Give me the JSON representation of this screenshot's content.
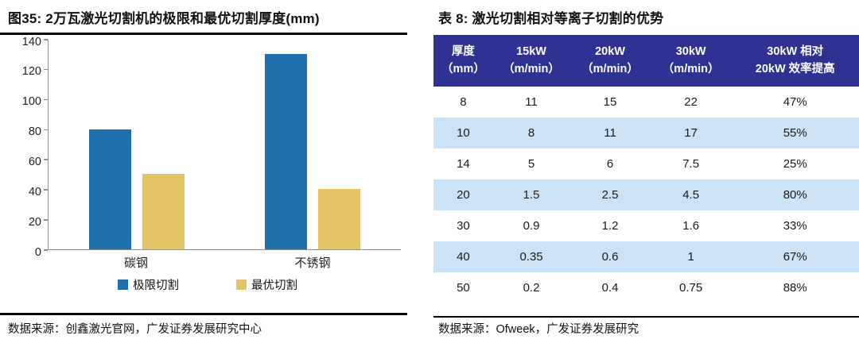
{
  "chart": {
    "title": "图35:  2万瓦激光切割机的极限和最优切割厚度(mm)",
    "source": "数据来源：创鑫激光官网，广发证券发展研究中心"
  },
  "chart_data": {
    "type": "bar",
    "categories": [
      "碳钢",
      "不锈钢"
    ],
    "series": [
      {
        "name": "极限切割",
        "color": "#2070AC",
        "values": [
          80,
          130
        ]
      },
      {
        "name": "最优切割",
        "color": "#E2C464",
        "values": [
          50,
          40
        ]
      }
    ],
    "title": "2万瓦激光切割机的极限和最优切割厚度(mm)",
    "xlabel": "",
    "ylabel": "",
    "ylim": [
      0,
      140
    ],
    "ytick_step": 20,
    "grid": false,
    "legend_position": "bottom",
    "axis_color": "#8f8f8f"
  },
  "table": {
    "title": "表 8:  激光切割相对等离子切割的优势",
    "source": "数据来源：Ofweek，广发证券发展研究",
    "header_bg": "#2F3292",
    "header_text_color": "#FFFFFF",
    "stripe_bg": "#CBE3F6",
    "columns": [
      {
        "line1": "厚度",
        "line2": "（mm）"
      },
      {
        "line1": "15kW",
        "line2": "（m/min）"
      },
      {
        "line1": "20kW",
        "line2": "（m/min）"
      },
      {
        "line1": "30kW",
        "line2": "（m/min）"
      },
      {
        "line1": "30kW 相对",
        "line2": "20kW 效率提高"
      }
    ],
    "col_widths_pct": [
      14,
      18,
      19,
      19,
      30
    ],
    "rows": [
      [
        "8",
        "11",
        "15",
        "22",
        "47%"
      ],
      [
        "10",
        "8",
        "11",
        "17",
        "55%"
      ],
      [
        "14",
        "5",
        "6",
        "7.5",
        "25%"
      ],
      [
        "20",
        "1.5",
        "2.5",
        "4.5",
        "80%"
      ],
      [
        "30",
        "0.9",
        "1.2",
        "1.6",
        "33%"
      ],
      [
        "40",
        "0.35",
        "0.6",
        "1",
        "67%"
      ],
      [
        "50",
        "0.2",
        "0.4",
        "0.75",
        "88%"
      ]
    ]
  }
}
